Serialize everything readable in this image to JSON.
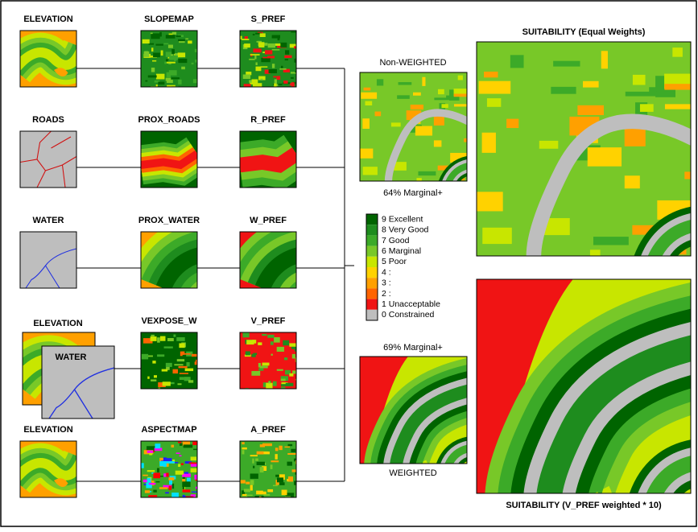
{
  "rows": [
    {
      "inputs": [
        "ELEVATION"
      ],
      "derived": "SLOPEMAP",
      "pref": "S_PREF"
    },
    {
      "inputs": [
        "ROADS"
      ],
      "derived": "PROX_ROADS",
      "pref": "R_PREF"
    },
    {
      "inputs": [
        "WATER"
      ],
      "derived": "PROX_WATER",
      "pref": "W_PREF"
    },
    {
      "inputs": [
        "ELEVATION",
        "WATER"
      ],
      "derived": "VEXPOSE_W",
      "pref": "V_PREF"
    },
    {
      "inputs": [
        "ELEVATION"
      ],
      "derived": "ASPECTMAP",
      "pref": "A_PREF"
    }
  ],
  "non_weighted": {
    "title": "Non-WEIGHTED",
    "caption": "64% Marginal+"
  },
  "weighted": {
    "title": "WEIGHTED",
    "caption": "69% Marginal+"
  },
  "suitability_equal": "SUITABILITY (Equal Weights)",
  "suitability_weighted": "SUITABILITY (V_PREF weighted * 10)",
  "legend": [
    {
      "label": "9 Excellent",
      "color": "#006400"
    },
    {
      "label": "8 Very Good",
      "color": "#1e8c1e"
    },
    {
      "label": "7 Good",
      "color": "#3caa28"
    },
    {
      "label": "6 Marginal",
      "color": "#78c828"
    },
    {
      "label": "5 Poor",
      "color": "#c8e600"
    },
    {
      "label": "4 :",
      "color": "#ffd200"
    },
    {
      "label": "3 :",
      "color": "#ffa000"
    },
    {
      "label": "2 :",
      "color": "#ff6400"
    },
    {
      "label": "1 Unacceptable",
      "color": "#f01414"
    },
    {
      "label": "0 Constrained",
      "color": "#bebebe"
    }
  ]
}
